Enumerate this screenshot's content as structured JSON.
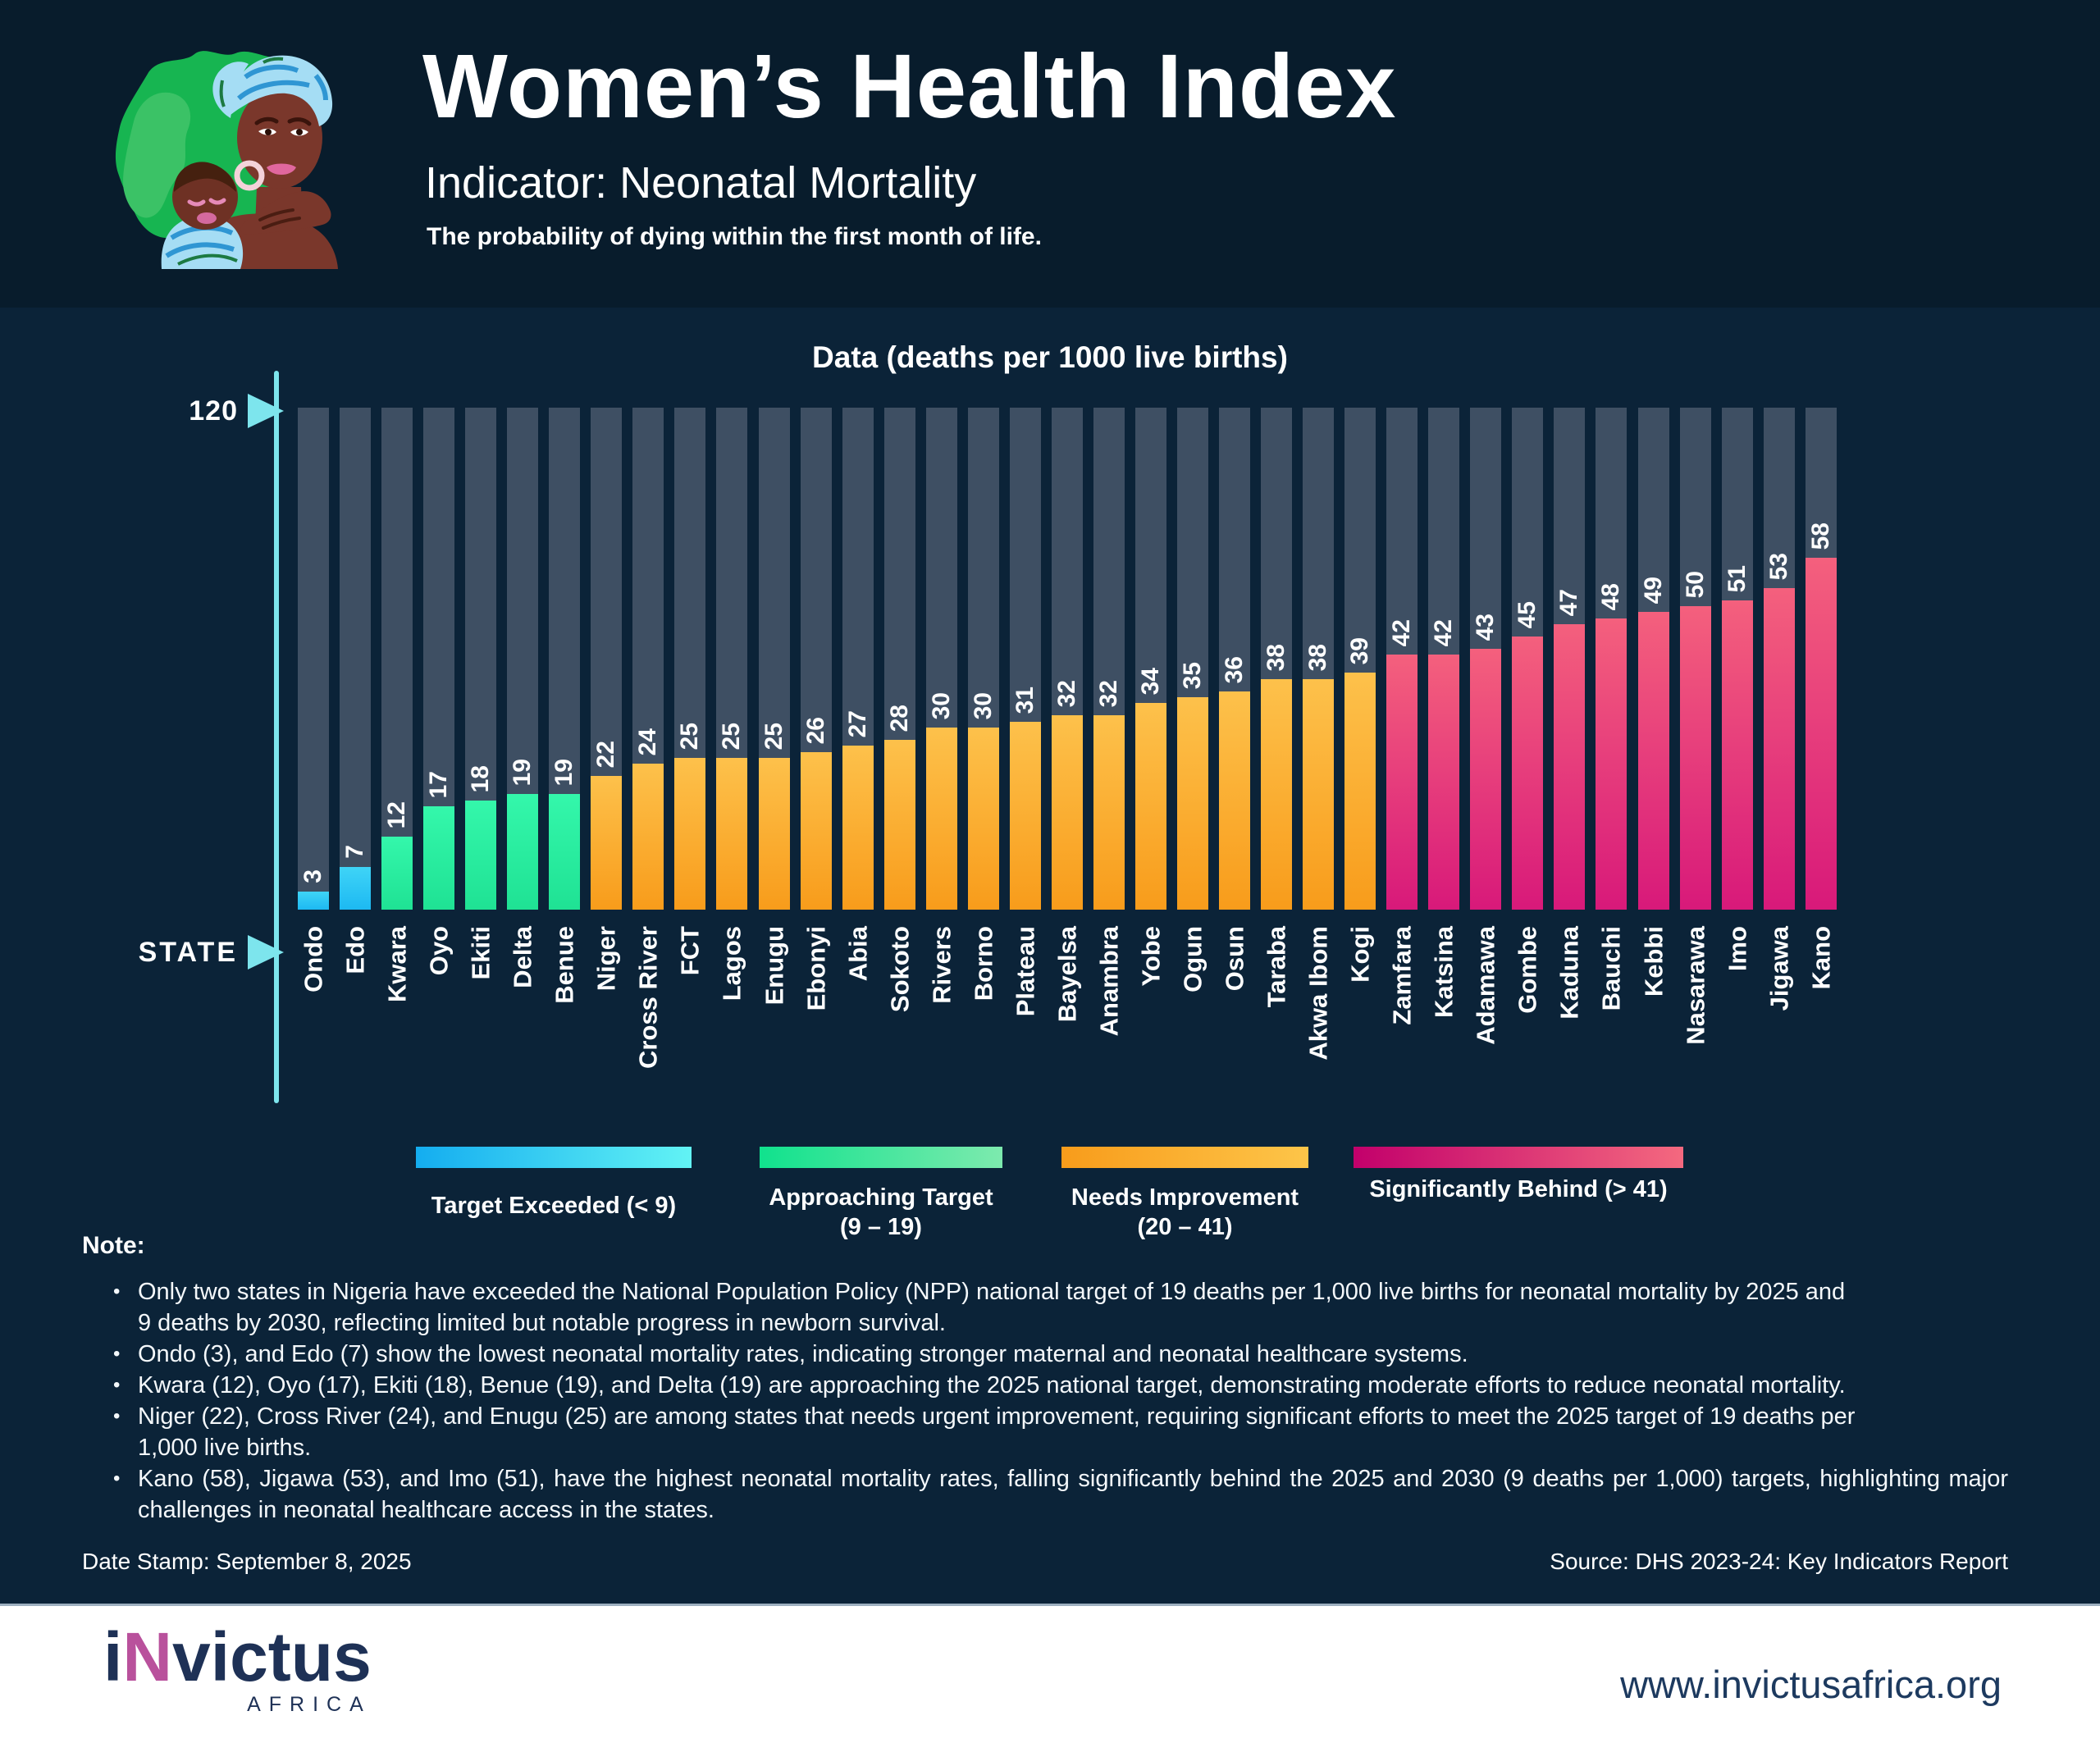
{
  "header": {
    "title": "Women’s Health Index",
    "subtitle": "Indicator: Neonatal Mortality",
    "description": "The probability of dying within the first month of life.",
    "illustration": "mother-and-baby-on-green-nigeria-map"
  },
  "chart_data": {
    "type": "bar",
    "title": "Data (deaths per 1000 live births)",
    "x_axis_label": "STATE",
    "y_axis_max_label": "120",
    "ylim": [
      0,
      120
    ],
    "grid": false,
    "legend_position": "bottom",
    "categories": [
      "Ondo",
      "Edo",
      "Kwara",
      "Oyo",
      "Ekiti",
      "Delta",
      "Benue",
      "Niger",
      "Cross River",
      "FCT",
      "Lagos",
      "Enugu",
      "Ebonyi",
      "Abia",
      "Sokoto",
      "Rivers",
      "Borno",
      "Plateau",
      "Bayelsa",
      "Anambra",
      "Yobe",
      "Ogun",
      "Osun",
      "Taraba",
      "Akwa Ibom",
      "Kogi",
      "Zamfara",
      "Katsina",
      "Adamawa",
      "Gombe",
      "Kaduna",
      "Bauchi",
      "Kebbi",
      "Nasarawa",
      "Imo",
      "Jigawa",
      "Kano"
    ],
    "values": [
      3,
      7,
      12,
      17,
      18,
      19,
      19,
      22,
      24,
      25,
      25,
      25,
      26,
      27,
      28,
      30,
      30,
      31,
      32,
      32,
      34,
      35,
      36,
      38,
      38,
      39,
      42,
      42,
      43,
      45,
      47,
      48,
      49,
      50,
      51,
      53,
      58
    ],
    "bars": [
      {
        "state": "Ondo",
        "value": 3,
        "band": "target_exceeded"
      },
      {
        "state": "Edo",
        "value": 7,
        "band": "target_exceeded"
      },
      {
        "state": "Kwara",
        "value": 12,
        "band": "approaching"
      },
      {
        "state": "Oyo",
        "value": 17,
        "band": "approaching"
      },
      {
        "state": "Ekiti",
        "value": 18,
        "band": "approaching"
      },
      {
        "state": "Delta",
        "value": 19,
        "band": "approaching"
      },
      {
        "state": "Benue",
        "value": 19,
        "band": "approaching"
      },
      {
        "state": "Niger",
        "value": 22,
        "band": "needs_improvement"
      },
      {
        "state": "Cross River",
        "value": 24,
        "band": "needs_improvement"
      },
      {
        "state": "FCT",
        "value": 25,
        "band": "needs_improvement"
      },
      {
        "state": "Lagos",
        "value": 25,
        "band": "needs_improvement"
      },
      {
        "state": "Enugu",
        "value": 25,
        "band": "needs_improvement"
      },
      {
        "state": "Ebonyi",
        "value": 26,
        "band": "needs_improvement"
      },
      {
        "state": "Abia",
        "value": 27,
        "band": "needs_improvement"
      },
      {
        "state": "Sokoto",
        "value": 28,
        "band": "needs_improvement"
      },
      {
        "state": "Rivers",
        "value": 30,
        "band": "needs_improvement"
      },
      {
        "state": "Borno",
        "value": 30,
        "band": "needs_improvement"
      },
      {
        "state": "Plateau",
        "value": 31,
        "band": "needs_improvement"
      },
      {
        "state": "Bayelsa",
        "value": 32,
        "band": "needs_improvement"
      },
      {
        "state": "Anambra",
        "value": 32,
        "band": "needs_improvement"
      },
      {
        "state": "Yobe",
        "value": 34,
        "band": "needs_improvement"
      },
      {
        "state": "Ogun",
        "value": 35,
        "band": "needs_improvement"
      },
      {
        "state": "Osun",
        "value": 36,
        "band": "needs_improvement"
      },
      {
        "state": "Taraba",
        "value": 38,
        "band": "needs_improvement"
      },
      {
        "state": "Akwa Ibom",
        "value": 38,
        "band": "needs_improvement"
      },
      {
        "state": "Kogi",
        "value": 39,
        "band": "needs_improvement"
      },
      {
        "state": "Zamfara",
        "value": 42,
        "band": "significantly_behind"
      },
      {
        "state": "Katsina",
        "value": 42,
        "band": "significantly_behind"
      },
      {
        "state": "Adamawa",
        "value": 43,
        "band": "significantly_behind"
      },
      {
        "state": "Gombe",
        "value": 45,
        "band": "significantly_behind"
      },
      {
        "state": "Kaduna",
        "value": 47,
        "band": "significantly_behind"
      },
      {
        "state": "Bauchi",
        "value": 48,
        "band": "significantly_behind"
      },
      {
        "state": "Kebbi",
        "value": 49,
        "band": "significantly_behind"
      },
      {
        "state": "Nasarawa",
        "value": 50,
        "band": "significantly_behind"
      },
      {
        "state": "Imo",
        "value": 51,
        "band": "significantly_behind"
      },
      {
        "state": "Jigawa",
        "value": 53,
        "band": "significantly_behind"
      },
      {
        "state": "Kano",
        "value": 58,
        "band": "significantly_behind"
      }
    ]
  },
  "legend": {
    "items": [
      {
        "label": "Target Exceeded (< 9)",
        "sublabel": "",
        "band": "target_exceeded"
      },
      {
        "label": "Approaching Target",
        "sublabel": "(9 – 19)",
        "band": "approaching"
      },
      {
        "label": "Needs Improvement",
        "sublabel": "(20 – 41)",
        "band": "needs_improvement"
      },
      {
        "label": "Significantly Behind (> 41)",
        "sublabel": "",
        "band": "significantly_behind"
      }
    ]
  },
  "notes": {
    "heading": "Note:",
    "bullets": [
      {
        "lines": [
          "Only two states in Nigeria have exceeded the National Population Policy (NPP) national target of 19 deaths per 1,000 live births for neonatal mortality by 2025 and",
          "9 deaths by 2030, reflecting limited but notable progress in newborn survival."
        ]
      },
      {
        "lines": [
          "Ondo (3), and Edo (7) show the lowest neonatal mortality rates, indicating stronger maternal and neonatal healthcare systems."
        ]
      },
      {
        "lines": [
          "Kwara (12), Oyo (17), Ekiti (18), Benue (19), and Delta (19) are approaching the 2025 national target, demonstrating moderate efforts to reduce neonatal mortality."
        ]
      },
      {
        "lines": [
          "Niger (22), Cross River (24), and Enugu (25) are among states that needs urgent improvement, requiring significant efforts to meet the 2025 target of 19 deaths per",
          "1,000 live births."
        ]
      },
      {
        "lines": [
          "Kano (58), Jigawa (53), and Imo (51), have the highest neonatal mortality rates, falling significantly behind the 2025 and 2030 (9 deaths per 1,000) targets, highlighting major challenges in neonatal healthcare access in the states."
        ],
        "justify": true
      }
    ]
  },
  "meta": {
    "date_stamp": "Date Stamp: September 8, 2025",
    "source": "Source: DHS 2023-24: Key Indicators Report"
  },
  "footer": {
    "logo_part_i": "i",
    "logo_part_n": "N",
    "logo_part_rest": "victus",
    "logo_subtext": "AFRICA",
    "website": "www.invictusafrica.org"
  },
  "colors": {
    "header_bg": "#081c2c",
    "body_bg": "#0b2338",
    "track": "#3e4f63",
    "accent_cyan": "#7de5ed",
    "band_target_exceeded": [
      "#1db9f2",
      "#62f3f4"
    ],
    "band_approaching": [
      "#1fe294",
      "#7deaae"
    ],
    "band_needs_improvement": [
      "#f89c1b",
      "#fdc549"
    ],
    "band_significantly_behind": [
      "#c2006b",
      "#f4697f"
    ],
    "footer_bg": "#ffffff",
    "logo_navy": "#1e3156",
    "logo_pink": "#b9519c"
  }
}
